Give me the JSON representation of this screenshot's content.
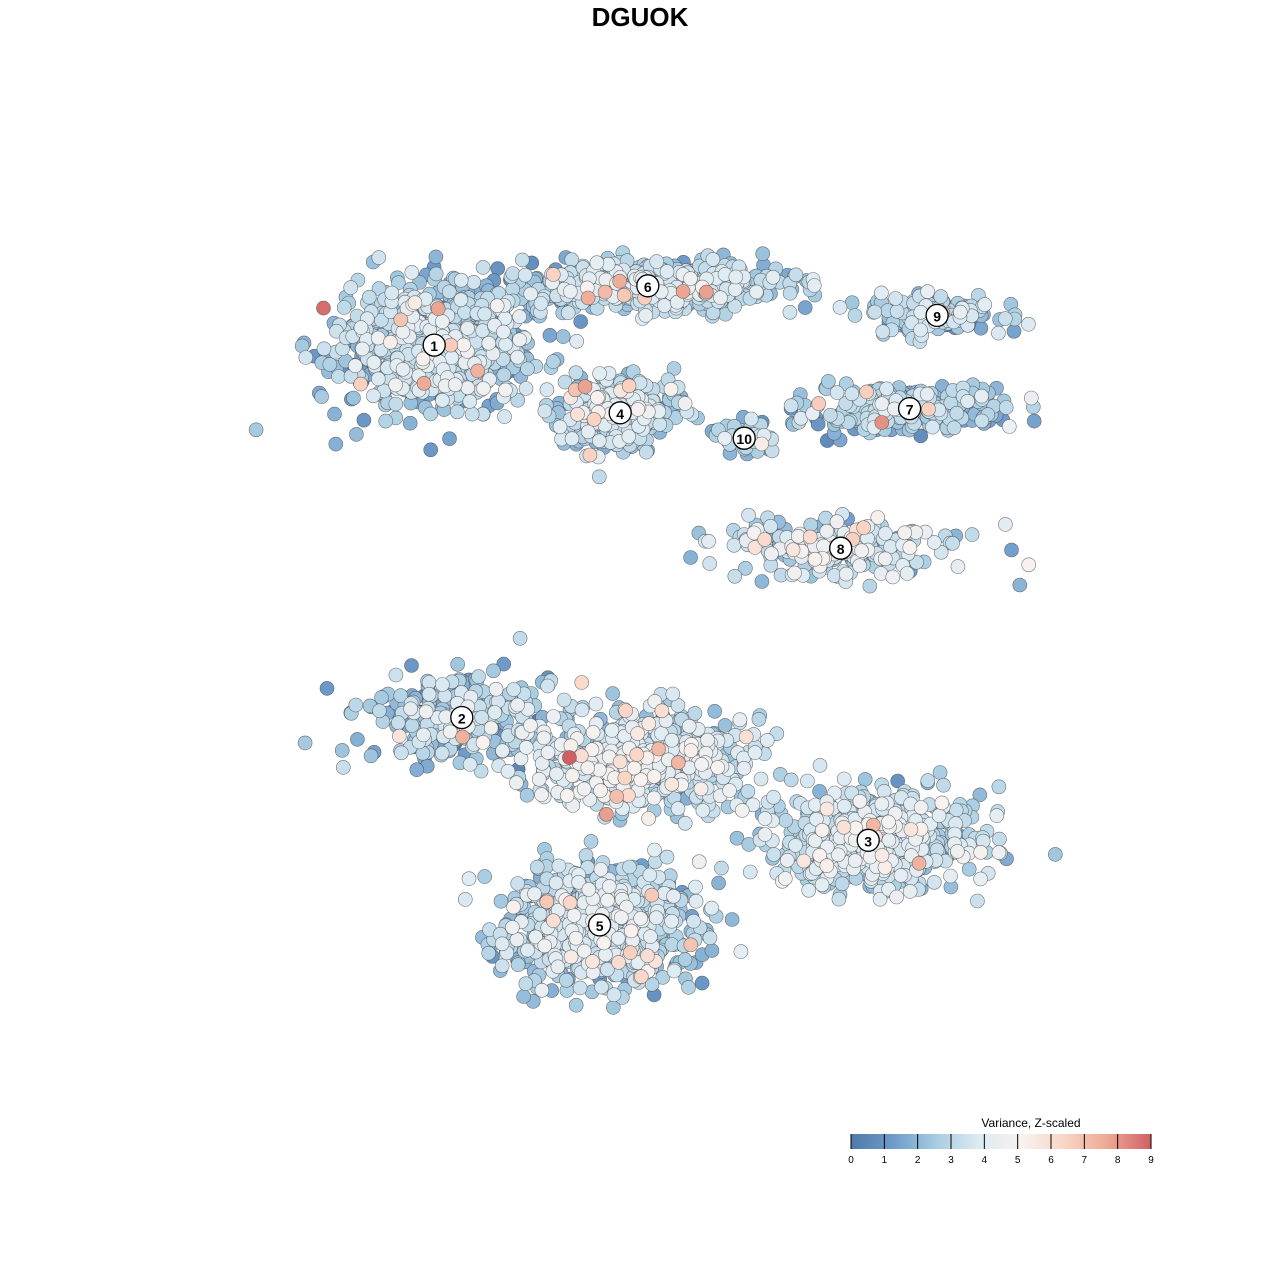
{
  "chart_data": {
    "type": "scatter",
    "title": "DGUOK",
    "xlabel": "",
    "ylabel": "",
    "grid": false,
    "colorbar": {
      "title": "Variance, Z-scaled",
      "min": 0,
      "max": 9,
      "ticks": [
        "0",
        "1",
        "2",
        "3",
        "4",
        "5",
        "6",
        "7",
        "8",
        "9"
      ],
      "colors": [
        "#4f79a8",
        "#6f9ccb",
        "#a8cde2",
        "#deebf3",
        "#f7f2f0",
        "#f9d4c4",
        "#eca893",
        "#d06064"
      ],
      "placement": "bottom-right"
    },
    "clusters": [
      {
        "label": "1",
        "x": 0.14,
        "y": 0.71,
        "spread": [
          0.12,
          0.13
        ],
        "mean": 2.6,
        "sd": 0.9,
        "count": 900
      },
      {
        "label": "6",
        "x": 0.45,
        "y": 0.85,
        "spread": [
          0.16,
          0.05
        ],
        "mean": 2.9,
        "sd": 0.8,
        "count": 650
      },
      {
        "label": "4",
        "x": 0.41,
        "y": 0.55,
        "spread": [
          0.07,
          0.08
        ],
        "mean": 2.8,
        "sd": 0.8,
        "count": 380
      },
      {
        "label": "9",
        "x": 0.87,
        "y": 0.78,
        "spread": [
          0.09,
          0.04
        ],
        "mean": 2.6,
        "sd": 0.8,
        "count": 160
      },
      {
        "label": "7",
        "x": 0.83,
        "y": 0.56,
        "spread": [
          0.14,
          0.05
        ],
        "mean": 2.4,
        "sd": 0.7,
        "count": 320
      },
      {
        "label": "10",
        "x": 0.59,
        "y": 0.49,
        "spread": [
          0.04,
          0.04
        ],
        "mean": 2.6,
        "sd": 0.7,
        "count": 60
      },
      {
        "label": "8",
        "x": 0.73,
        "y": 0.23,
        "spread": [
          0.15,
          0.06
        ],
        "mean": 3.3,
        "sd": 1.0,
        "count": 260
      },
      {
        "label": "2",
        "x": 0.18,
        "y": -0.17,
        "spread": [
          0.12,
          0.09
        ],
        "mean": 2.5,
        "sd": 0.9,
        "count": 300
      },
      {
        "label": "3",
        "x": 0.77,
        "y": -0.46,
        "spread": [
          0.14,
          0.1
        ],
        "mean": 3.2,
        "sd": 0.9,
        "count": 620
      },
      {
        "label": "5",
        "x": 0.38,
        "y": -0.66,
        "spread": [
          0.12,
          0.12
        ],
        "mean": 2.8,
        "sd": 0.8,
        "count": 850
      },
      {
        "label": "",
        "x": 0.44,
        "y": -0.27,
        "spread": [
          0.14,
          0.1
        ],
        "mean": 3.3,
        "sd": 0.9,
        "count": 700
      }
    ],
    "xlim": [
      -0.2,
      1.15
    ],
    "ylim": [
      -1.05,
      1.1
    ]
  }
}
